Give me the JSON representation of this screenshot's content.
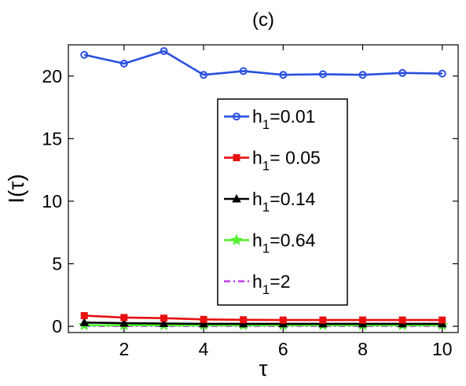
{
  "chart_data": {
    "type": "line",
    "title": "(c)",
    "xlabel": "τ",
    "ylabel": "I(τ)",
    "xlim": [
      0.6,
      10.4
    ],
    "ylim": [
      -0.5,
      22.5
    ],
    "xticks": [
      2,
      4,
      6,
      8,
      10
    ],
    "yticks": [
      0,
      5,
      10,
      15,
      20
    ],
    "grid": false,
    "legend_position": "center",
    "x": [
      1,
      2,
      3,
      4,
      5,
      6,
      7,
      8,
      9,
      10
    ],
    "series": [
      {
        "name": "h1=0.01",
        "label_base": "h",
        "label_sub": "1",
        "label_rest": "=0.01",
        "color": "#2a50e0",
        "marker": "circle",
        "dash": "solid",
        "values": [
          21.7,
          21.0,
          22.0,
          20.1,
          20.4,
          20.1,
          20.15,
          20.1,
          20.25,
          20.2
        ]
      },
      {
        "name": "h1= 0.05",
        "label_base": "h",
        "label_sub": "1",
        "label_rest": "= 0.05",
        "color": "#e81010",
        "marker": "square",
        "dash": "solid",
        "values": [
          0.85,
          0.7,
          0.65,
          0.55,
          0.52,
          0.5,
          0.5,
          0.5,
          0.5,
          0.5
        ]
      },
      {
        "name": "h1=0.14",
        "label_base": "h",
        "label_sub": "1",
        "label_rest": "=0.14",
        "color": "#000000",
        "marker": "triangle",
        "dash": "solid",
        "values": [
          0.3,
          0.25,
          0.22,
          0.2,
          0.2,
          0.2,
          0.2,
          0.2,
          0.2,
          0.2
        ]
      },
      {
        "name": "h1=0.64",
        "label_base": "h",
        "label_sub": "1",
        "label_rest": "=0.64",
        "color": "#50f030",
        "marker": "star",
        "dash": "solid",
        "values": [
          0.08,
          0.08,
          0.08,
          0.08,
          0.08,
          0.08,
          0.08,
          0.08,
          0.08,
          0.08
        ]
      },
      {
        "name": "h1=2",
        "label_base": "h",
        "label_sub": "1",
        "label_rest": "=2",
        "color": "#c040f0",
        "marker": "none",
        "dash": "dashdot",
        "values": [
          0.02,
          0.02,
          0.02,
          0.02,
          0.02,
          0.02,
          0.02,
          0.02,
          0.02,
          0.02
        ]
      }
    ]
  }
}
